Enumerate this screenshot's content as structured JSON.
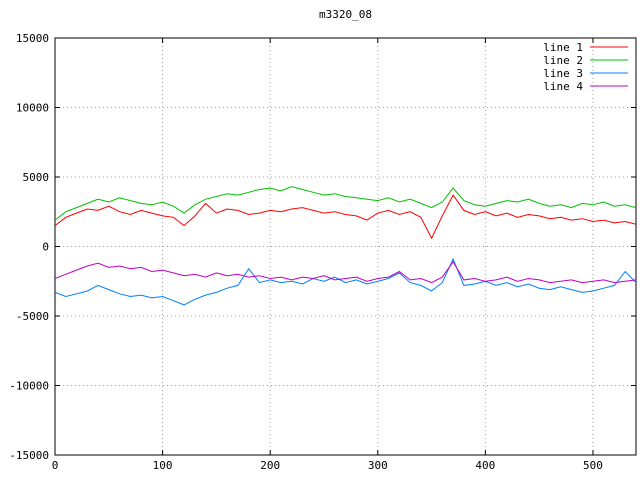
{
  "chart_data": {
    "type": "line",
    "title": "m3320_08",
    "xlabel": "",
    "ylabel": "",
    "xlim": [
      0,
      540
    ],
    "ylim": [
      -15000,
      15000
    ],
    "xticks": [
      0,
      100,
      200,
      300,
      400,
      500
    ],
    "yticks": [
      -15000,
      -10000,
      -5000,
      0,
      5000,
      10000,
      15000
    ],
    "grid": "dotted",
    "legend_position": "top-right",
    "background_color": "#ffffff",
    "grid_color": "#a0a0a0",
    "axis_color": "#000000",
    "x": [
      0,
      10,
      20,
      30,
      40,
      50,
      60,
      70,
      80,
      90,
      100,
      110,
      120,
      130,
      140,
      150,
      160,
      170,
      180,
      190,
      200,
      210,
      220,
      230,
      240,
      250,
      260,
      270,
      280,
      290,
      300,
      310,
      320,
      330,
      340,
      350,
      360,
      370,
      380,
      390,
      400,
      410,
      420,
      430,
      440,
      450,
      460,
      470,
      480,
      490,
      500,
      510,
      520,
      530,
      540
    ],
    "series": [
      {
        "name": "line 1",
        "color": "#ff0000",
        "values": [
          1500,
          2100,
          2400,
          2700,
          2600,
          2900,
          2500,
          2300,
          2600,
          2400,
          2200,
          2100,
          1500,
          2200,
          3100,
          2400,
          2700,
          2600,
          2300,
          2400,
          2600,
          2500,
          2700,
          2800,
          2600,
          2400,
          2500,
          2300,
          2200,
          1900,
          2400,
          2600,
          2300,
          2500,
          2100,
          600,
          2200,
          3700,
          2600,
          2300,
          2500,
          2200,
          2400,
          2100,
          2300,
          2200,
          2000,
          2100,
          1900,
          2000,
          1800,
          1900,
          1700,
          1800,
          1600
        ]
      },
      {
        "name": "line 2",
        "color": "#00c000",
        "values": [
          1900,
          2500,
          2800,
          3100,
          3400,
          3200,
          3500,
          3300,
          3100,
          3000,
          3200,
          2900,
          2400,
          3000,
          3400,
          3600,
          3800,
          3700,
          3900,
          4100,
          4200,
          4000,
          4300,
          4100,
          3900,
          3700,
          3800,
          3600,
          3500,
          3400,
          3300,
          3500,
          3200,
          3400,
          3100,
          2800,
          3200,
          4200,
          3300,
          3000,
          2900,
          3100,
          3300,
          3200,
          3400,
          3100,
          2900,
          3000,
          2800,
          3100,
          3000,
          3200,
          2900,
          3000,
          2800
        ]
      },
      {
        "name": "line 3",
        "color": "#0080ff",
        "values": [
          -3300,
          -3600,
          -3400,
          -3200,
          -2800,
          -3100,
          -3400,
          -3600,
          -3500,
          -3700,
          -3600,
          -3900,
          -4200,
          -3800,
          -3500,
          -3300,
          -3000,
          -2800,
          -1600,
          -2600,
          -2400,
          -2600,
          -2500,
          -2700,
          -2300,
          -2500,
          -2200,
          -2600,
          -2400,
          -2700,
          -2500,
          -2300,
          -1900,
          -2600,
          -2800,
          -3200,
          -2600,
          -900,
          -2800,
          -2700,
          -2500,
          -2800,
          -2600,
          -2900,
          -2700,
          -3000,
          -3100,
          -2900,
          -3100,
          -3300,
          -3200,
          -3000,
          -2800,
          -1800,
          -2600
        ]
      },
      {
        "name": "line 4",
        "color": "#c000c0",
        "values": [
          -2300,
          -2000,
          -1700,
          -1400,
          -1200,
          -1500,
          -1400,
          -1600,
          -1500,
          -1800,
          -1700,
          -1900,
          -2100,
          -2000,
          -2200,
          -1900,
          -2100,
          -2000,
          -2200,
          -2100,
          -2300,
          -2200,
          -2400,
          -2200,
          -2300,
          -2100,
          -2400,
          -2300,
          -2200,
          -2500,
          -2300,
          -2200,
          -1800,
          -2400,
          -2300,
          -2600,
          -2200,
          -1100,
          -2400,
          -2300,
          -2500,
          -2400,
          -2200,
          -2500,
          -2300,
          -2400,
          -2600,
          -2500,
          -2400,
          -2600,
          -2500,
          -2400,
          -2600,
          -2500,
          -2400
        ]
      }
    ]
  }
}
